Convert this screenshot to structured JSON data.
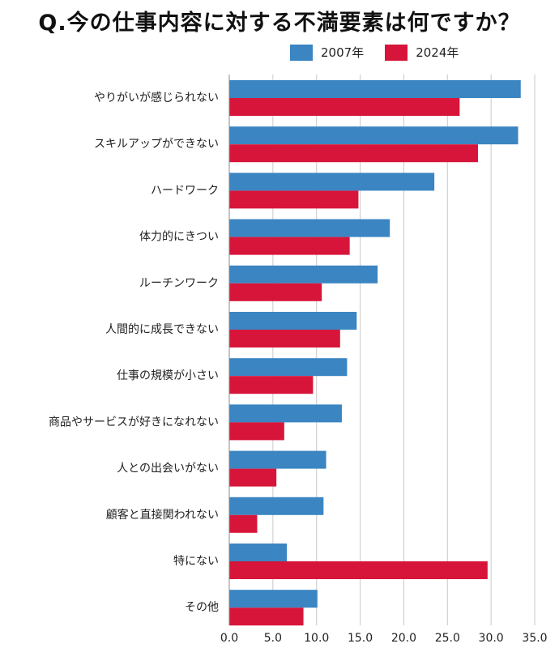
{
  "chart_data": {
    "type": "bar",
    "orientation": "horizontal",
    "title": "Q.今の仕事内容に対する不満要素は何ですか？",
    "xlabel": "",
    "ylabel": "",
    "xlim": [
      0,
      35
    ],
    "xticks": [
      "0.0",
      "5.0",
      "10.0",
      "15.0",
      "20.0",
      "25.0",
      "30.0",
      "35.0"
    ],
    "grid": "vertical",
    "legend_position": "top-right",
    "categories": [
      "やりがいが感じられない",
      "スキルアップができない",
      "ハードワーク",
      "体力的にきつい",
      "ルーチンワーク",
      "人間的に成長できない",
      "仕事の規模が小さい",
      "商品やサービスが好きになれない",
      "人との出会いがない",
      "顧客と直接関われない",
      "特にない",
      "その他"
    ],
    "series": [
      {
        "name": "2007年",
        "color": "#3a85c2",
        "values": [
          33.4,
          33.1,
          23.5,
          18.4,
          17.0,
          14.6,
          13.5,
          12.9,
          11.1,
          10.8,
          6.6,
          10.1
        ]
      },
      {
        "name": "2024年",
        "color": "#d7153a",
        "values": [
          26.4,
          28.5,
          14.8,
          13.8,
          10.6,
          12.7,
          9.6,
          6.3,
          5.4,
          3.2,
          29.6,
          8.5
        ]
      }
    ]
  }
}
